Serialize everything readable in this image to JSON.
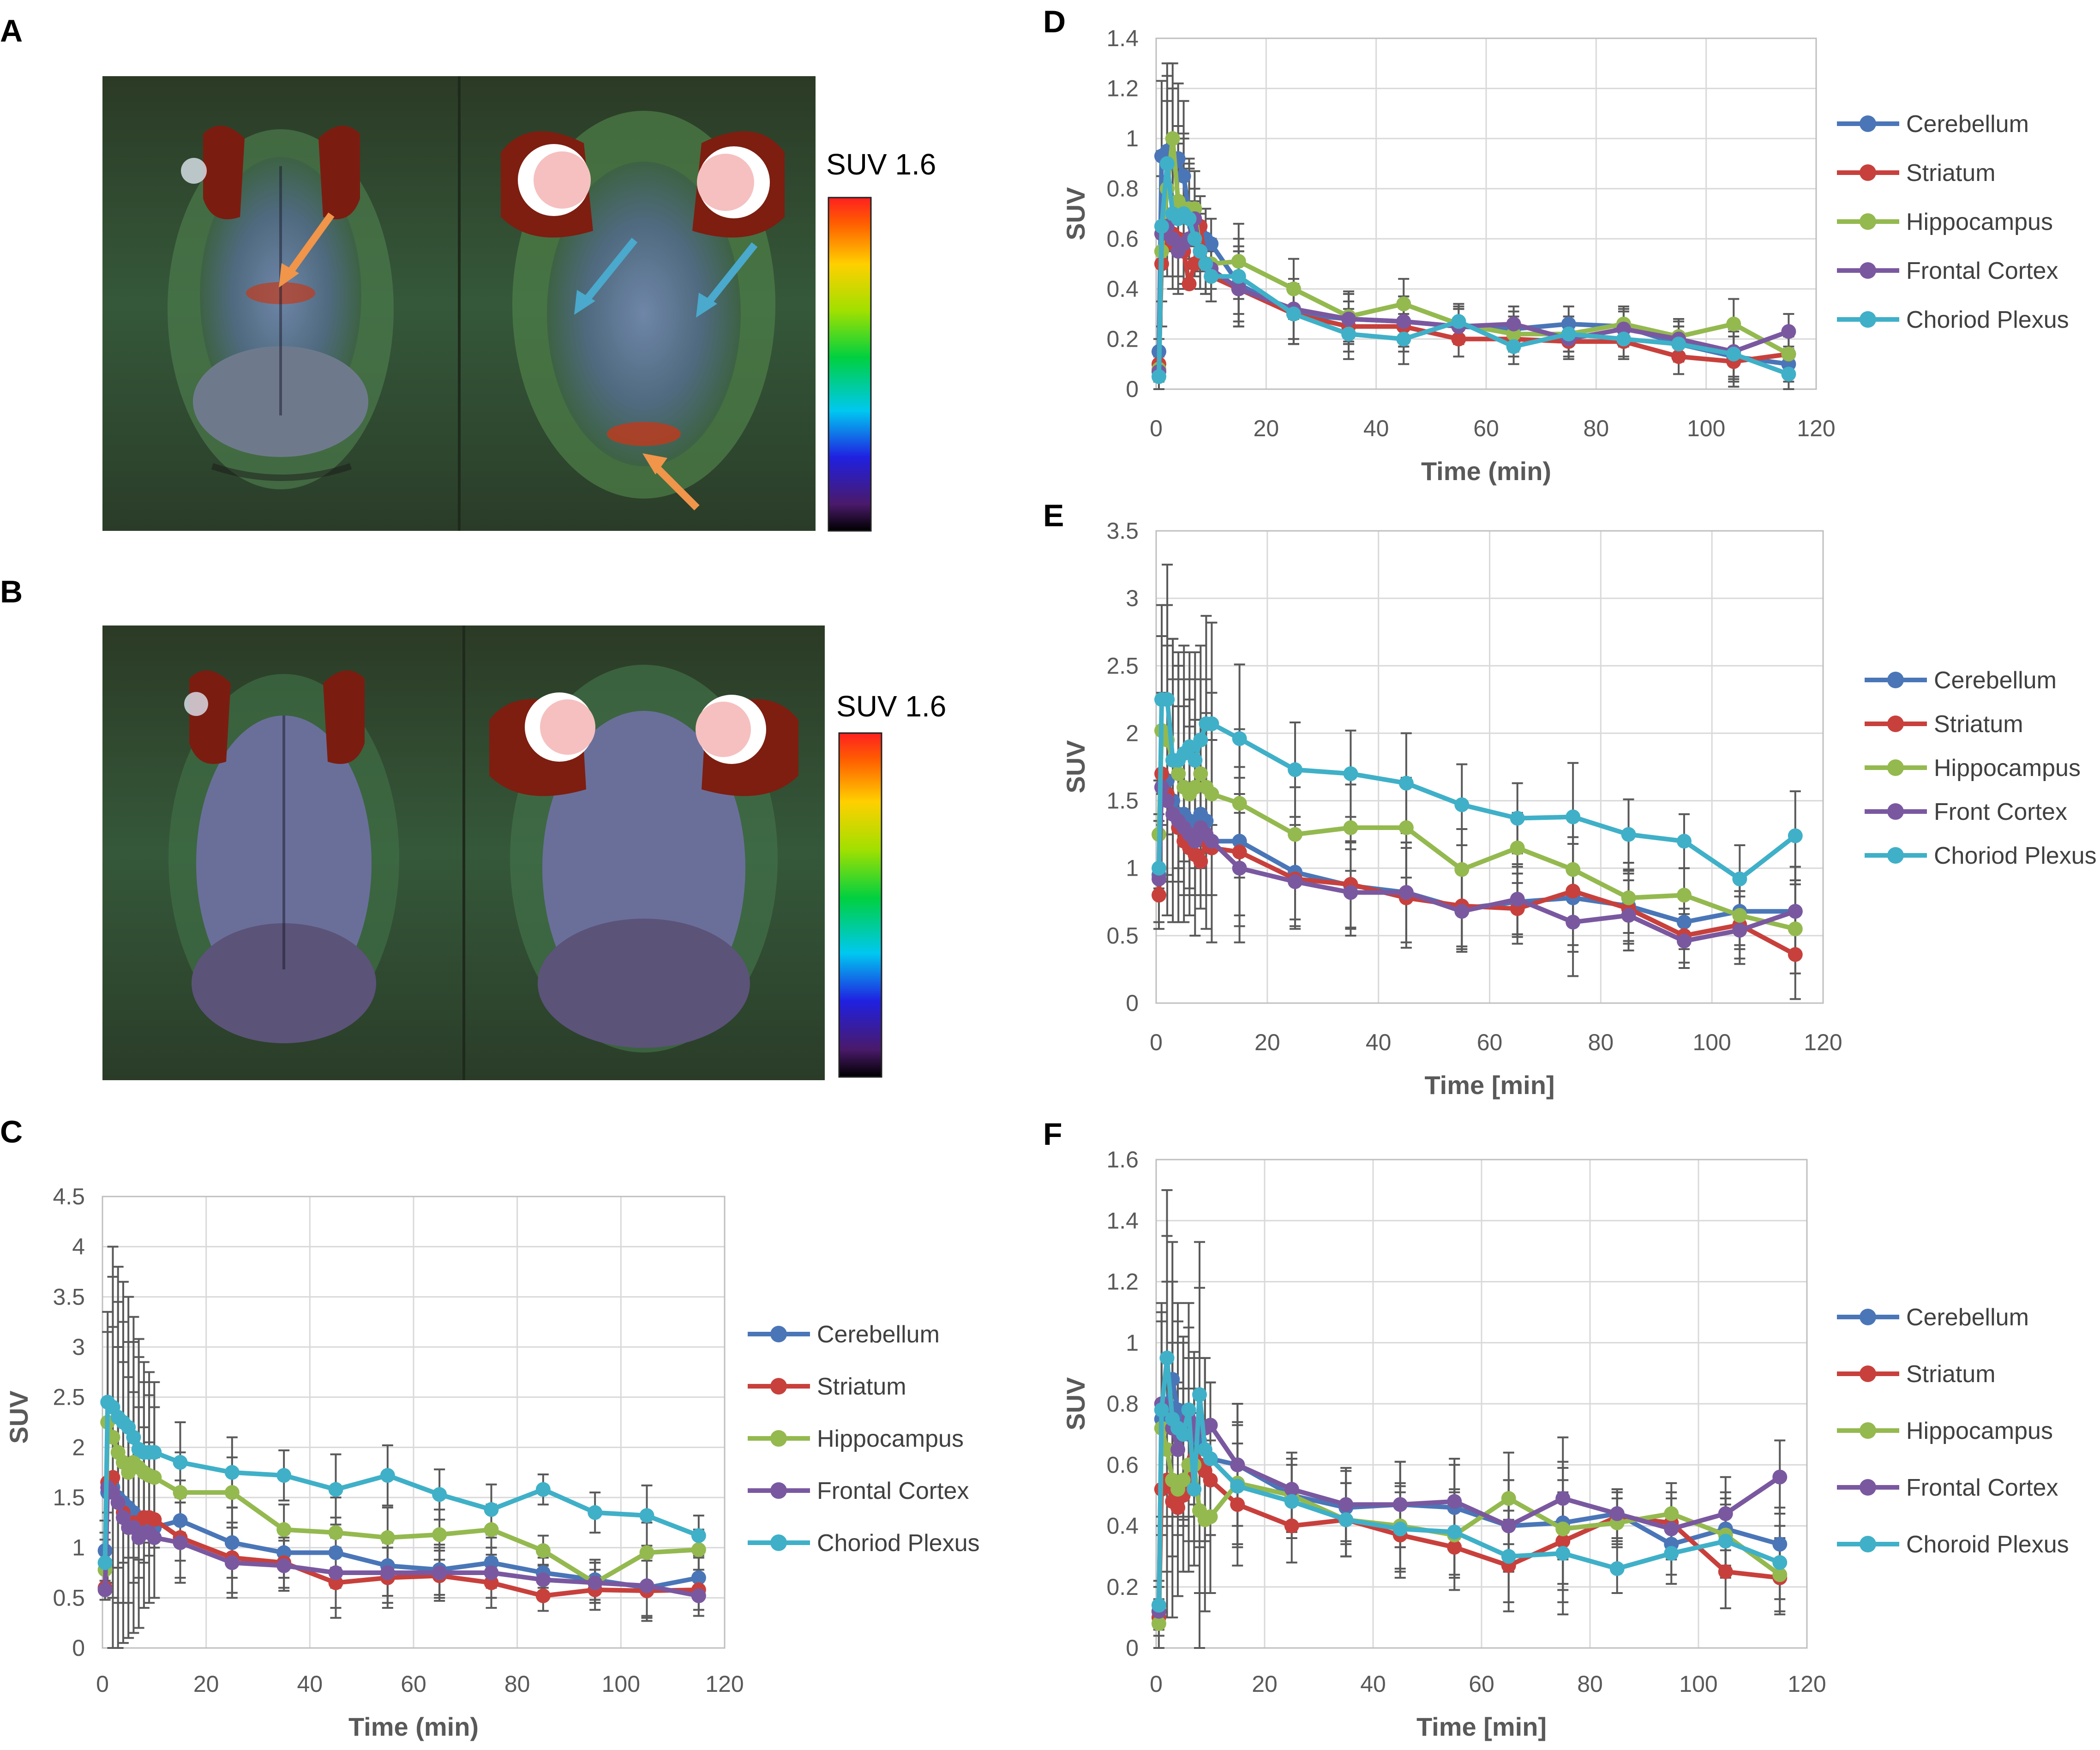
{
  "panels": {
    "A": {
      "letter": "A",
      "scale_label": "SUV 1.6"
    },
    "B": {
      "letter": "B",
      "scale_label": "SUV 1.6"
    }
  },
  "colors": {
    "Cerebellum": "#4a76b8",
    "Striatum": "#c8403c",
    "Hippocampus": "#94b94f",
    "Cortex": "#7a58a0",
    "Plexus": "#3fb0c8",
    "arrow_orange": "#f0954a",
    "arrow_cyan": "#4aa9cc"
  },
  "chart_data": [
    {
      "panel": "C",
      "type": "line",
      "xlabel": "Time (min)",
      "ylabel": "SUV",
      "xlim": [
        0,
        120
      ],
      "xticks": [
        0,
        20,
        40,
        60,
        80,
        100,
        120
      ],
      "ylim": [
        0,
        4.5
      ],
      "yticks": [
        "0",
        "0.5",
        "1",
        "1.5",
        "2",
        "2.5",
        "3",
        "3.5",
        "4",
        "4.5"
      ],
      "x": [
        0.5,
        1,
        2,
        3,
        4,
        5,
        6,
        7,
        8,
        9,
        10,
        15,
        25,
        35,
        45,
        55,
        65,
        75,
        85,
        95,
        105,
        115
      ],
      "series": [
        {
          "name": "Cerebellum",
          "color_key": "Cerebellum",
          "values": [
            0.97,
            1.55,
            1.6,
            1.5,
            1.45,
            1.4,
            1.35,
            1.3,
            1.3,
            1.25,
            1.2,
            1.27,
            1.05,
            0.95,
            0.95,
            0.82,
            0.78,
            0.85,
            0.75,
            0.68,
            0.6,
            0.7
          ]
        },
        {
          "name": "Striatum",
          "color_key": "Striatum",
          "values": [
            0.6,
            1.65,
            1.7,
            1.45,
            1.35,
            1.25,
            1.25,
            1.2,
            1.3,
            1.3,
            1.28,
            1.1,
            0.9,
            0.85,
            0.65,
            0.7,
            0.72,
            0.65,
            0.52,
            0.58,
            0.57,
            0.58
          ]
        },
        {
          "name": "Hippocampus",
          "color_key": "Hippocampus",
          "values": [
            0.78,
            2.25,
            2.1,
            1.95,
            1.85,
            1.75,
            1.85,
            1.8,
            1.75,
            1.72,
            1.7,
            1.55,
            1.55,
            1.18,
            1.15,
            1.1,
            1.13,
            1.18,
            0.97,
            0.65,
            0.95,
            0.98
          ]
        },
        {
          "name": "Frontal Cortex",
          "color_key": "Cortex",
          "values": [
            0.58,
            1.6,
            1.55,
            1.45,
            1.3,
            1.2,
            1.2,
            1.1,
            1.15,
            1.15,
            1.1,
            1.05,
            0.85,
            0.82,
            0.75,
            0.75,
            0.75,
            0.75,
            0.68,
            0.65,
            0.62,
            0.52
          ]
        },
        {
          "name": "Choriod Plexus",
          "color_key": "Plexus",
          "values": [
            0.85,
            2.45,
            2.4,
            2.3,
            2.25,
            2.2,
            2.1,
            1.98,
            1.95,
            1.95,
            1.95,
            1.85,
            1.75,
            1.72,
            1.58,
            1.72,
            1.53,
            1.38,
            1.58,
            1.35,
            1.32,
            1.12
          ]
        }
      ],
      "errors": [
        0.3,
        0.9,
        1.6,
        1.5,
        1.4,
        1.3,
        1.2,
        1.1,
        0.9,
        0.8,
        0.7,
        0.4,
        0.35,
        0.25,
        0.35,
        0.3,
        0.25,
        0.25,
        0.15,
        0.2,
        0.3,
        0.2
      ],
      "legend": [
        "Cerebellum",
        "Striatum",
        "Hippocampus",
        "Frontal Cortex",
        "Choriod Plexus"
      ],
      "legend_position": "right"
    },
    {
      "panel": "D",
      "type": "line",
      "xlabel": "Time (min)",
      "ylabel": "SUV",
      "xlim": [
        0,
        120
      ],
      "xticks": [
        0,
        20,
        40,
        60,
        80,
        100,
        120
      ],
      "ylim": [
        0,
        1.4
      ],
      "yticks": [
        "0",
        "0.2",
        "0.4",
        "0.6",
        "0.8",
        "1",
        "1.2",
        "1.4"
      ],
      "x": [
        0.5,
        1,
        2,
        3,
        4,
        5,
        6,
        7,
        8,
        9,
        10,
        15,
        25,
        35,
        45,
        55,
        65,
        75,
        85,
        95,
        105,
        115
      ],
      "series": [
        {
          "name": "Cerebellum",
          "color_key": "Cerebellum",
          "values": [
            0.15,
            0.93,
            0.95,
            0.9,
            0.92,
            0.85,
            0.7,
            0.65,
            0.62,
            0.6,
            0.58,
            0.42,
            0.3,
            0.28,
            0.27,
            0.25,
            0.24,
            0.26,
            0.25,
            0.18,
            0.13,
            0.1
          ]
        },
        {
          "name": "Striatum",
          "color_key": "Striatum",
          "values": [
            0.1,
            0.5,
            0.58,
            0.62,
            0.6,
            0.55,
            0.42,
            0.5,
            0.65,
            0.5,
            0.45,
            0.4,
            0.3,
            0.25,
            0.25,
            0.2,
            0.2,
            0.19,
            0.19,
            0.13,
            0.11,
            0.14
          ]
        },
        {
          "name": "Hippocampus",
          "color_key": "Hippocampus",
          "values": [
            0.08,
            0.55,
            0.8,
            1.0,
            0.75,
            0.72,
            0.72,
            0.72,
            0.55,
            0.5,
            0.5,
            0.51,
            0.4,
            0.29,
            0.34,
            0.26,
            0.22,
            0.22,
            0.26,
            0.21,
            0.26,
            0.14
          ]
        },
        {
          "name": "Frontal Cortex",
          "color_key": "Cortex",
          "values": [
            0.07,
            0.62,
            0.65,
            0.6,
            0.55,
            0.58,
            0.6,
            0.68,
            0.55,
            0.5,
            0.48,
            0.4,
            0.32,
            0.28,
            0.27,
            0.25,
            0.26,
            0.2,
            0.24,
            0.2,
            0.15,
            0.23
          ]
        },
        {
          "name": "Choriod Plexus",
          "color_key": "Plexus",
          "values": [
            0.05,
            0.65,
            0.9,
            0.7,
            0.68,
            0.7,
            0.68,
            0.6,
            0.55,
            0.5,
            0.45,
            0.45,
            0.3,
            0.22,
            0.2,
            0.27,
            0.17,
            0.22,
            0.2,
            0.18,
            0.14,
            0.06
          ]
        }
      ],
      "errors": [
        0.05,
        0.3,
        0.35,
        0.3,
        0.3,
        0.3,
        0.2,
        0.15,
        0.15,
        0.12,
        0.1,
        0.15,
        0.12,
        0.1,
        0.1,
        0.07,
        0.07,
        0.07,
        0.07,
        0.07,
        0.1,
        0.07
      ],
      "legend": [
        "Cerebellum",
        "Striatum",
        "Hippocampus",
        "Frontal Cortex",
        "Choriod Plexus"
      ],
      "legend_position": "right"
    },
    {
      "panel": "E",
      "type": "line",
      "xlabel": "Time [min]",
      "ylabel": "SUV",
      "xlim": [
        0,
        120
      ],
      "xticks": [
        0,
        20,
        40,
        60,
        80,
        100,
        120
      ],
      "ylim": [
        0,
        3.5
      ],
      "yticks": [
        "0",
        "0.5",
        "1",
        "1.5",
        "2",
        "2.5",
        "3",
        "3.5"
      ],
      "x": [
        0.5,
        1,
        2,
        3,
        4,
        5,
        6,
        7,
        8,
        9,
        10,
        15,
        25,
        35,
        45,
        55,
        65,
        75,
        85,
        95,
        105,
        115
      ],
      "series": [
        {
          "name": "Cerebellum",
          "color_key": "Cerebellum",
          "values": [
            0.95,
            1.6,
            1.65,
            1.5,
            1.4,
            1.4,
            1.35,
            1.3,
            1.4,
            1.35,
            1.2,
            1.2,
            0.97,
            0.87,
            0.82,
            0.7,
            0.75,
            0.78,
            0.72,
            0.6,
            0.68,
            0.68
          ]
        },
        {
          "name": "Striatum",
          "color_key": "Striatum",
          "values": [
            0.8,
            1.7,
            1.55,
            1.4,
            1.3,
            1.2,
            1.15,
            1.1,
            1.05,
            1.2,
            1.15,
            1.12,
            0.92,
            0.88,
            0.78,
            0.72,
            0.7,
            0.83,
            0.7,
            0.5,
            0.58,
            0.36
          ]
        },
        {
          "name": "Hippocampus",
          "color_key": "Hippocampus",
          "values": [
            1.25,
            2.02,
            1.95,
            1.8,
            1.7,
            1.6,
            1.55,
            1.6,
            1.7,
            1.6,
            1.55,
            1.48,
            1.25,
            1.3,
            1.3,
            0.99,
            1.15,
            0.99,
            0.78,
            0.8,
            0.65,
            0.55
          ]
        },
        {
          "name": "Front Cortex",
          "color_key": "Cortex",
          "values": [
            0.92,
            1.6,
            1.5,
            1.4,
            1.35,
            1.3,
            1.25,
            1.2,
            1.3,
            1.25,
            1.2,
            1.0,
            0.9,
            0.82,
            0.82,
            0.68,
            0.77,
            0.6,
            0.65,
            0.46,
            0.54,
            0.68
          ]
        },
        {
          "name": "Choriod Plexus",
          "color_key": "Plexus",
          "values": [
            1.0,
            2.25,
            2.25,
            1.8,
            1.8,
            1.85,
            1.9,
            1.8,
            1.95,
            2.07,
            2.07,
            1.96,
            1.73,
            1.7,
            1.63,
            1.47,
            1.37,
            1.38,
            1.25,
            1.2,
            0.92,
            1.24
          ]
        }
      ],
      "errors": [
        0.4,
        0.7,
        1.0,
        0.9,
        0.8,
        0.8,
        0.7,
        0.8,
        0.7,
        0.8,
        0.75,
        0.55,
        0.35,
        0.32,
        0.37,
        0.3,
        0.26,
        0.4,
        0.26,
        0.2,
        0.25,
        0.33
      ],
      "legend": [
        "Cerebellum",
        "Striatum",
        "Hippocampus",
        "Front Cortex",
        "Choriod Plexus"
      ],
      "legend_position": "right"
    },
    {
      "panel": "F",
      "type": "line",
      "xlabel": "Time [min]",
      "ylabel": "SUV",
      "xlim": [
        0,
        120
      ],
      "xticks": [
        0,
        20,
        40,
        60,
        80,
        100,
        120
      ],
      "ylim": [
        0,
        1.6
      ],
      "yticks": [
        "0",
        "0.2",
        "0.4",
        "0.6",
        "0.8",
        "1",
        "1.2",
        "1.4",
        "1.6"
      ],
      "x": [
        0.5,
        1,
        2,
        3,
        4,
        5,
        6,
        7,
        8,
        9,
        10,
        15,
        25,
        35,
        45,
        55,
        65,
        75,
        85,
        95,
        105,
        115
      ],
      "series": [
        {
          "name": "Cerebellum",
          "color_key": "Cerebellum",
          "values": [
            0.12,
            0.75,
            0.8,
            0.88,
            0.78,
            0.72,
            0.7,
            0.72,
            0.68,
            0.65,
            0.62,
            0.6,
            0.5,
            0.46,
            0.47,
            0.46,
            0.4,
            0.41,
            0.44,
            0.34,
            0.39,
            0.34
          ]
        },
        {
          "name": "Striatum",
          "color_key": "Striatum",
          "values": [
            0.1,
            0.52,
            0.55,
            0.48,
            0.46,
            0.5,
            0.55,
            0.62,
            0.6,
            0.58,
            0.55,
            0.47,
            0.4,
            0.42,
            0.37,
            0.33,
            0.27,
            0.35,
            0.43,
            0.41,
            0.25,
            0.23
          ]
        },
        {
          "name": "Hippocampus",
          "color_key": "Hippocampus",
          "values": [
            0.08,
            0.72,
            0.65,
            0.55,
            0.52,
            0.55,
            0.6,
            0.6,
            0.45,
            0.42,
            0.43,
            0.54,
            0.5,
            0.42,
            0.4,
            0.37,
            0.49,
            0.39,
            0.41,
            0.44,
            0.37,
            0.24
          ]
        },
        {
          "name": "Frontal Cortex",
          "color_key": "Cortex",
          "values": [
            0.12,
            0.8,
            0.78,
            0.72,
            0.65,
            0.7,
            0.75,
            0.7,
            0.72,
            0.72,
            0.73,
            0.6,
            0.52,
            0.47,
            0.47,
            0.48,
            0.4,
            0.49,
            0.44,
            0.39,
            0.44,
            0.56
          ]
        },
        {
          "name": "Choroid Plexus",
          "color_key": "Plexus",
          "values": [
            0.14,
            0.78,
            0.95,
            0.75,
            0.72,
            0.7,
            0.78,
            0.52,
            0.83,
            0.65,
            0.62,
            0.53,
            0.48,
            0.42,
            0.39,
            0.38,
            0.3,
            0.31,
            0.26,
            0.31,
            0.35,
            0.28
          ]
        }
      ],
      "errors": [
        0.08,
        0.35,
        0.55,
        0.45,
        0.35,
        0.3,
        0.35,
        0.25,
        0.5,
        0.3,
        0.25,
        0.2,
        0.12,
        0.12,
        0.14,
        0.14,
        0.15,
        0.2,
        0.08,
        0.1,
        0.12,
        0.12
      ],
      "legend": [
        "Cerebellum",
        "Striatum",
        "Hippocampus",
        "Frontal Cortex",
        "Choroid Plexus"
      ],
      "legend_position": "right"
    }
  ]
}
